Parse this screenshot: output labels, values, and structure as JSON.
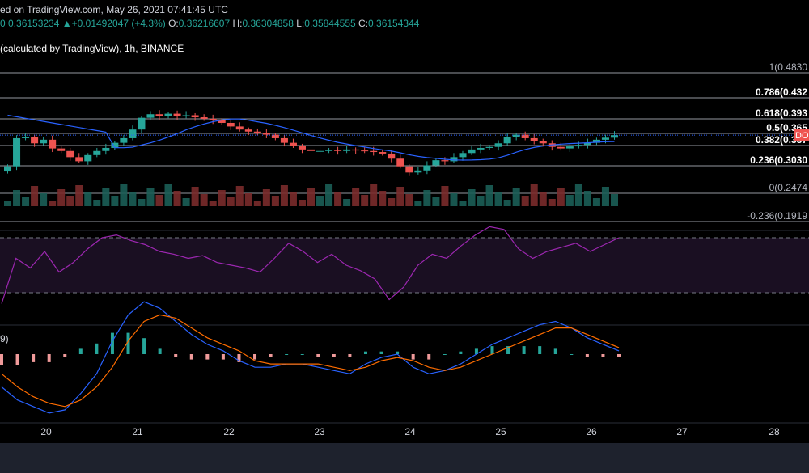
{
  "header": {
    "line1": "ed on TradingView.com, May 26, 2021 07:41:45 UTC",
    "price": "0 0.36153234",
    "change": "+0.01492047 (+4.3%)",
    "open_label": "O:",
    "open": "0.36216607",
    "high_label": "H:",
    "high": "0.36304858",
    "low_label": "L:",
    "low": "0.35844555",
    "close_label": "C:",
    "close": "0.36154344",
    "symbol_line": "(calculated by TradingView), 1h, BINANCE"
  },
  "chart_data": {
    "type": "candlestick",
    "x_ticks": [
      "20",
      "21",
      "22",
      "23",
      "24",
      "25",
      "26",
      "27",
      "28"
    ],
    "fib_levels": [
      {
        "ratio": "1",
        "price": "0.4830",
        "label": "1(0.4830"
      },
      {
        "ratio": "0.786",
        "price": "0.432",
        "label": "0.786(0.432"
      },
      {
        "ratio": "0.618",
        "price": "0.393",
        "label": "0.618(0.393"
      },
      {
        "ratio": "0.5",
        "price": "0.365",
        "label": "0.5(0.365"
      },
      {
        "ratio": "0.382",
        "price": "0.337",
        "label": "0.382(0.337"
      },
      {
        "ratio": "0.236",
        "price": "0.3030",
        "label": "0.236(0.3030"
      },
      {
        "ratio": "0",
        "price": "0.2474",
        "label": "0(0.2474"
      },
      {
        "ratio": "-0.236",
        "price": "0.1919",
        "label": "-0.236(0.1919"
      }
    ],
    "price_tag": "DO",
    "macd_label": "9)",
    "closes": [
      0.3,
      0.355,
      0.358,
      0.345,
      0.352,
      0.335,
      0.33,
      0.318,
      0.31,
      0.322,
      0.33,
      0.336,
      0.346,
      0.355,
      0.372,
      0.395,
      0.402,
      0.398,
      0.403,
      0.398,
      0.4,
      0.396,
      0.393,
      0.39,
      0.385,
      0.378,
      0.372,
      0.368,
      0.365,
      0.362,
      0.355,
      0.346,
      0.34,
      0.333,
      0.33,
      0.33,
      0.332,
      0.33,
      0.333,
      0.331,
      0.33,
      0.328,
      0.325,
      0.315,
      0.3,
      0.288,
      0.292,
      0.302,
      0.312,
      0.31,
      0.318,
      0.326,
      0.333,
      0.336,
      0.338,
      0.345,
      0.358,
      0.362,
      0.355,
      0.35,
      0.345,
      0.338,
      0.335,
      0.339,
      0.342,
      0.346,
      0.352,
      0.356,
      0.361
    ],
    "macd": [
      -0.01,
      -0.014,
      -0.016,
      -0.018,
      -0.017,
      -0.012,
      -0.006,
      0.004,
      0.012,
      0.016,
      0.014,
      0.01,
      0.006,
      0.003,
      0.001,
      -0.002,
      -0.004,
      -0.004,
      -0.003,
      -0.003,
      -0.004,
      -0.005,
      -0.006,
      -0.003,
      -0.001,
      0.0,
      -0.004,
      -0.006,
      -0.005,
      -0.003,
      0.0,
      0.003,
      0.005,
      0.007,
      0.009,
      0.01,
      0.008,
      0.005,
      0.003,
      0.001
    ],
    "macd_signal": [
      -0.006,
      -0.01,
      -0.013,
      -0.015,
      -0.016,
      -0.014,
      -0.01,
      -0.004,
      0.004,
      0.01,
      0.012,
      0.011,
      0.008,
      0.005,
      0.003,
      0.001,
      -0.002,
      -0.003,
      -0.003,
      -0.003,
      -0.003,
      -0.004,
      -0.005,
      -0.004,
      -0.002,
      -0.001,
      -0.002,
      -0.004,
      -0.005,
      -0.004,
      -0.002,
      0.0,
      0.002,
      0.004,
      0.006,
      0.008,
      0.008,
      0.006,
      0.004,
      0.002
    ],
    "rsi": [
      22,
      55,
      48,
      60,
      45,
      52,
      62,
      70,
      72,
      68,
      65,
      60,
      58,
      55,
      57,
      52,
      50,
      48,
      45,
      55,
      66,
      60,
      52,
      58,
      50,
      46,
      40,
      25,
      34,
      50,
      58,
      55,
      64,
      72,
      78,
      76,
      62,
      55,
      60,
      63,
      66,
      60,
      65,
      70
    ]
  },
  "colors": {
    "up": "#26a69a",
    "down": "#ef5350",
    "ma": "#2962ff",
    "rsi": "#9c27b0",
    "rsi_band": "#1a0f22",
    "macd": "#2962ff",
    "signal": "#ff6d00"
  }
}
